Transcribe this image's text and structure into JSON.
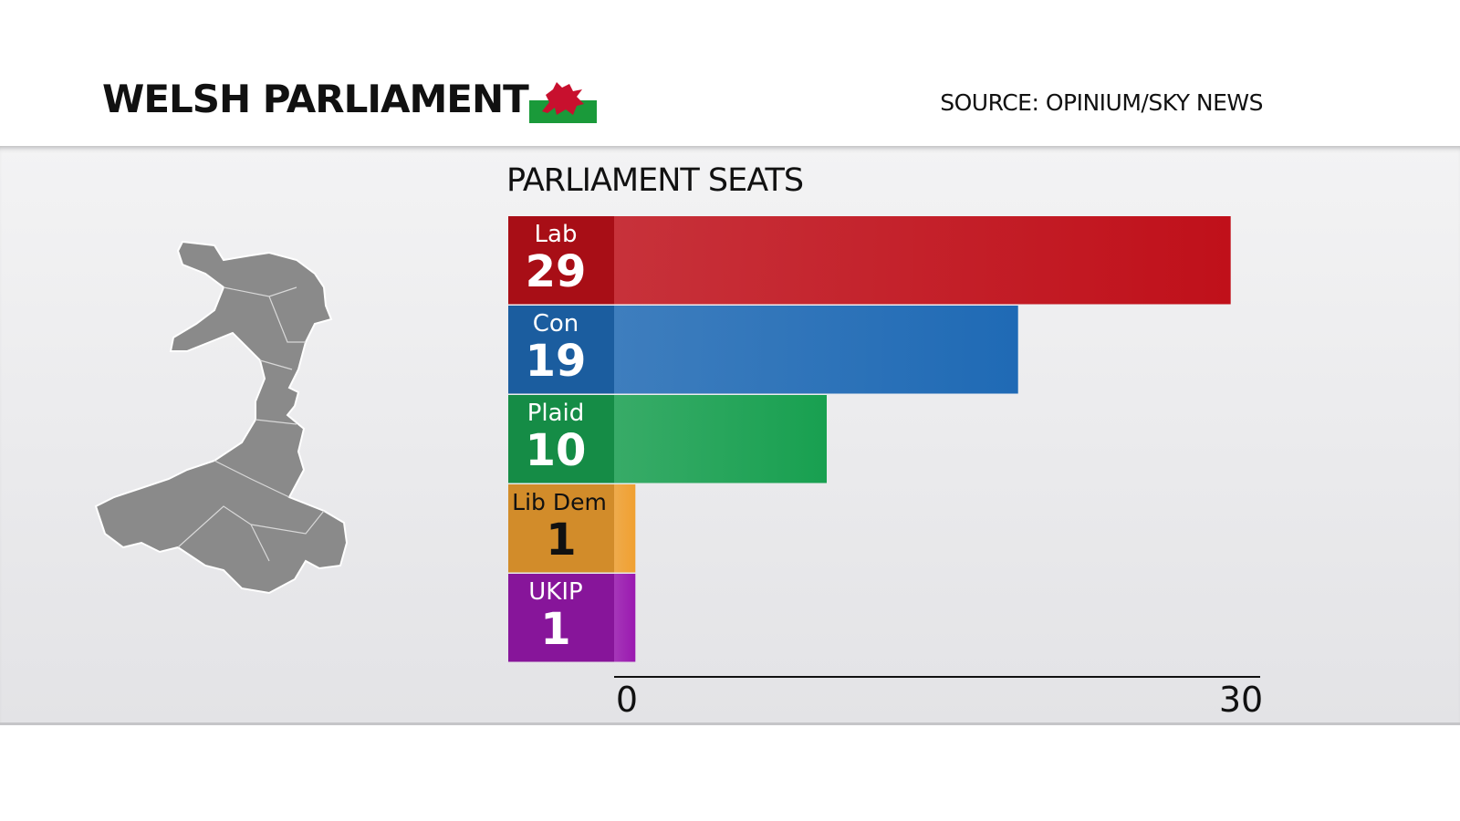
{
  "header": {
    "title": "WELSH PARLIAMENT",
    "source": "SOURCE: OPINIUM/SKY NEWS",
    "flag_icon": "wales-flag-icon"
  },
  "chart_data": {
    "type": "bar",
    "orientation": "horizontal",
    "title": "PARLIAMENT SEATS",
    "categories": [
      "Lab",
      "Con",
      "Plaid",
      "Lib Dem",
      "UKIP"
    ],
    "values": [
      29,
      19,
      10,
      1,
      1
    ],
    "colors": [
      "#c0101a",
      "#1f6ab5",
      "#18a050",
      "#f0a030",
      "#9a18b0"
    ],
    "label_colors": [
      "#ffffff",
      "#ffffff",
      "#ffffff",
      "#111111",
      "#ffffff"
    ],
    "xlim": [
      0,
      30
    ],
    "xticks": [
      "0",
      "30"
    ],
    "grid": false
  }
}
